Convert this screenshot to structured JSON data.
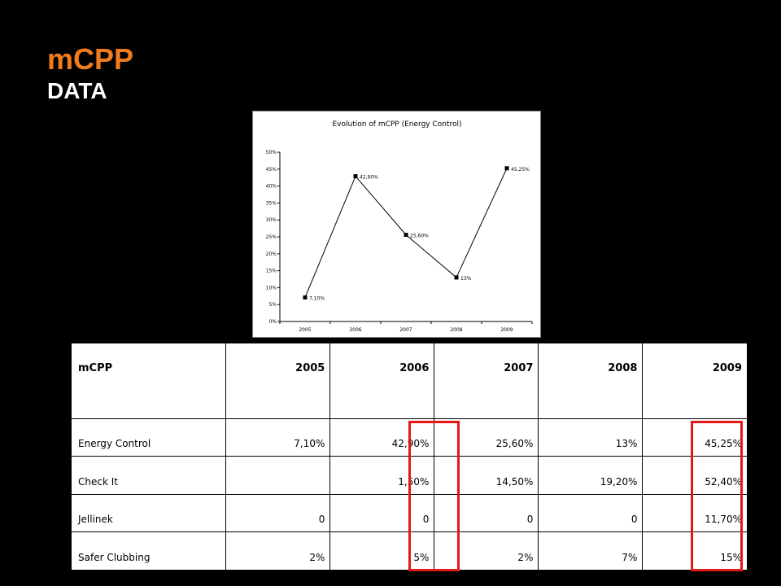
{
  "slide": {
    "title": "mCPP",
    "subtitle": "DATA",
    "title_color": "#f07b1c",
    "highlight_color": "#e01818"
  },
  "chart_data": {
    "type": "line",
    "title": "Evolution of mCPP (Energy Control)",
    "x": [
      "2005",
      "2006",
      "2007",
      "2008",
      "2009"
    ],
    "series": [
      {
        "values": [
          7.1,
          42.9,
          25.6,
          13,
          45.25
        ]
      }
    ],
    "data_labels": [
      "7,10%",
      "42,90%",
      "25,60%",
      "13%",
      "45,25%"
    ],
    "y_ticks": [
      "0%",
      "5%",
      "10%",
      "15%",
      "20%",
      "25%",
      "30%",
      "35%",
      "40%",
      "45%",
      "50%"
    ],
    "ylim": [
      0,
      50
    ],
    "xlabel": "",
    "ylabel": "",
    "grid": false,
    "legend": "none"
  },
  "table": {
    "headers": [
      "mCPP",
      "2005",
      "2006",
      "2007",
      "2008",
      "2009"
    ],
    "rows": [
      [
        "",
        "",
        "",
        "",
        "",
        ""
      ],
      [
        "Energy Control",
        "7,10%",
        "42,90%",
        "25,60%",
        "13%",
        "45,25%"
      ],
      [
        "Check It",
        "",
        "1,50%",
        "14,50%",
        "19,20%",
        "52,40%"
      ],
      [
        "Jellinek",
        "0",
        "0",
        "0",
        "0",
        "11,70%"
      ],
      [
        "Safer Clubbing",
        "2%",
        "5%",
        "2%",
        "7%",
        "15%"
      ]
    ]
  }
}
